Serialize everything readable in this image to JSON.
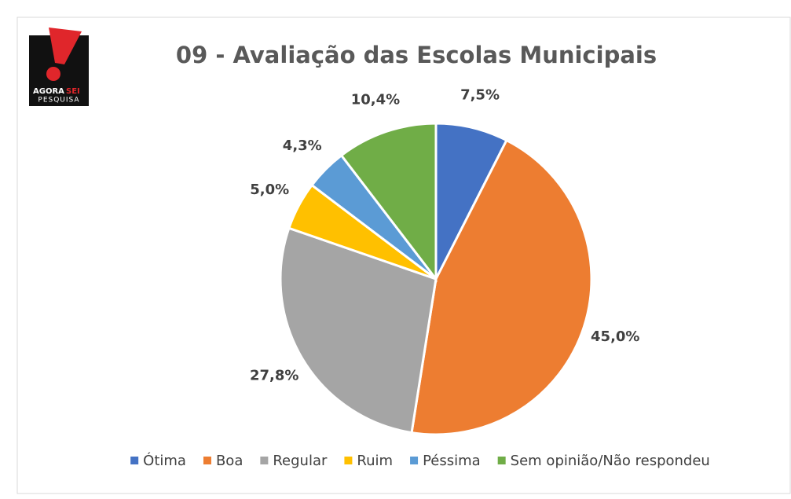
{
  "logo": {
    "word1": "AGORA",
    "word2": "SEI",
    "word3": "PESQUISA"
  },
  "chart_data": {
    "type": "pie",
    "title": "09 - Avaliação das Escolas Municipais",
    "categories": [
      "Ótima",
      "Boa",
      "Regular",
      "Ruim",
      "Péssima",
      "Sem opinião/Não respondeu"
    ],
    "values": [
      7.5,
      45.0,
      27.8,
      5.0,
      4.3,
      10.4
    ],
    "value_labels": [
      "7,5%",
      "45,0%",
      "27,8%",
      "5,0%",
      "4,3%",
      "10,4%"
    ],
    "colors": [
      "#4472c4",
      "#ed7d31",
      "#a5a5a5",
      "#ffc000",
      "#5b9bd5",
      "#70ad47"
    ],
    "legend": "bottom"
  }
}
